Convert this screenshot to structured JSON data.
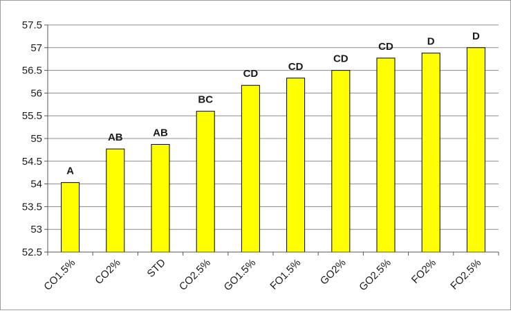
{
  "chart_data": {
    "type": "bar",
    "categories": [
      "CO1.5%",
      "CO2%",
      "STD",
      "CO2.5%",
      "GO1.5%",
      "FO1.5%",
      "GO2%",
      "GO2.5%",
      "FO2%",
      "FO2.5%"
    ],
    "values": [
      54.03,
      54.77,
      54.87,
      55.6,
      56.17,
      56.33,
      56.5,
      56.77,
      56.88,
      57.0
    ],
    "data_labels": [
      "A",
      "AB",
      "AB",
      "BC",
      "CD",
      "CD",
      "CD",
      "CD",
      "D",
      "D"
    ],
    "yticks": [
      "52.5",
      "53",
      "53.5",
      "54",
      "54.5",
      "55",
      "55.5",
      "56",
      "56.5",
      "57",
      "57.5"
    ],
    "ylim": [
      52.5,
      57.5
    ],
    "title": "",
    "xlabel": "",
    "ylabel": "",
    "grid": true,
    "legend": "none",
    "bar_color": "#FFFF00",
    "bar_edge_color": "#000000",
    "grid_color": "#8c8c8c"
  }
}
